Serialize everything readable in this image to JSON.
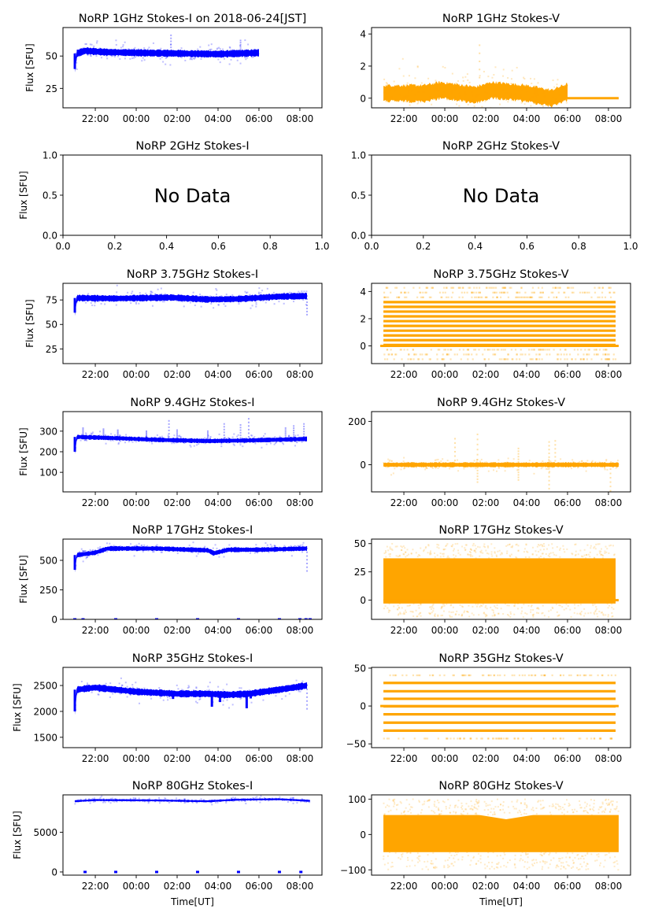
{
  "chart_data": [
    {
      "id": "1ghz-i",
      "type": "scatter",
      "title": "NoRP 1GHz Stokes-I on 2018-06-24[JST]",
      "ylabel": "Flux [SFU]",
      "xlabel": "",
      "color": "#0000ff",
      "xaxis": "time",
      "xlim_hours": [
        20.42,
        33.08
      ],
      "ylim": [
        10,
        72
      ],
      "yticks": [
        25,
        50
      ],
      "xticks": [
        "22:00",
        "00:00",
        "02:00",
        "04:00",
        "06:00",
        "08:00"
      ],
      "series": {
        "start": 21.0,
        "end": 30.0,
        "baseline": [
          [
            21.0,
            40
          ],
          [
            21.1,
            52
          ],
          [
            21.5,
            54
          ],
          [
            22.5,
            53
          ],
          [
            24,
            52.5
          ],
          [
            26,
            52
          ],
          [
            28,
            51.5
          ],
          [
            29,
            52
          ],
          [
            30,
            52.5
          ]
        ],
        "spread": 2.5,
        "spikes": [
          [
            25.7,
            66
          ],
          [
            29.1,
            62
          ]
        ],
        "zero_markers": []
      }
    },
    {
      "id": "1ghz-v",
      "type": "scatter",
      "title": "NoRP 1GHz Stokes-V",
      "ylabel": "",
      "xlabel": "",
      "color": "#ffa500",
      "xaxis": "time",
      "xlim_hours": [
        20.42,
        33.08
      ],
      "ylim": [
        -0.6,
        4.4
      ],
      "yticks": [
        0,
        2,
        4
      ],
      "xticks": [
        "22:00",
        "00:00",
        "02:00",
        "04:00",
        "06:00",
        "08:00"
      ],
      "series": {
        "start": 21.0,
        "end": 30.0,
        "baseline": [
          [
            21,
            0.3
          ],
          [
            23,
            0.3
          ],
          [
            23.8,
            0.5
          ],
          [
            25.5,
            0.2
          ],
          [
            26.3,
            0.5
          ],
          [
            28,
            0.3
          ],
          [
            29.2,
            0.0
          ],
          [
            30,
            0.4
          ]
        ],
        "spread": 0.5,
        "spikes": [
          [
            25.7,
            3.3
          ]
        ],
        "flat_after": [
          30.0,
          32.5,
          0
        ]
      }
    },
    {
      "id": "2ghz-i",
      "type": "empty",
      "title": "NoRP 2GHz Stokes-I",
      "ylabel": "Flux [SFU]",
      "annotation": "No Data",
      "xlim": [
        0,
        1
      ],
      "ylim": [
        0,
        1
      ],
      "xticks": [
        "0.0",
        "0.2",
        "0.4",
        "0.6",
        "0.8",
        "1.0"
      ],
      "yticks": [
        "0.0",
        "0.5",
        "1.0"
      ]
    },
    {
      "id": "2ghz-v",
      "type": "empty",
      "title": "NoRP 2GHz Stokes-V",
      "ylabel": "",
      "annotation": "No Data",
      "xlim": [
        0,
        1
      ],
      "ylim": [
        0,
        1
      ],
      "xticks": [
        "0.0",
        "0.2",
        "0.4",
        "0.6",
        "0.8",
        "1.0"
      ],
      "yticks": [
        "0.0",
        "0.5",
        "1.0"
      ]
    },
    {
      "id": "375ghz-i",
      "type": "scatter",
      "title": "NoRP 3.75GHz Stokes-I",
      "ylabel": "Flux [SFU]",
      "xlabel": "",
      "color": "#0000ff",
      "xaxis": "time",
      "xlim_hours": [
        20.42,
        33.08
      ],
      "ylim": [
        10,
        92
      ],
      "yticks": [
        25,
        50,
        75
      ],
      "xticks": [
        "22:00",
        "00:00",
        "02:00",
        "04:00",
        "06:00",
        "08:00"
      ],
      "series": {
        "start": 21.0,
        "end": 32.35,
        "baseline": [
          [
            21.0,
            62
          ],
          [
            21.1,
            77
          ],
          [
            23,
            76.5
          ],
          [
            25.7,
            77.5
          ],
          [
            27.5,
            75.5
          ],
          [
            29,
            76
          ],
          [
            31,
            78.5
          ],
          [
            32.35,
            79
          ]
        ],
        "spread": 3,
        "spikes": [
          [
            32.35,
            60
          ]
        ]
      }
    },
    {
      "id": "375ghz-v",
      "type": "levels",
      "title": "NoRP 3.75GHz Stokes-V",
      "ylabel": "",
      "xlabel": "",
      "color": "#ffa500",
      "xaxis": "time",
      "xlim_hours": [
        20.42,
        33.08
      ],
      "ylim": [
        -1.3,
        4.6
      ],
      "yticks": [
        0,
        2,
        4
      ],
      "xticks": [
        "22:00",
        "00:00",
        "02:00",
        "04:00",
        "06:00",
        "08:00"
      ],
      "series": {
        "start": 21.0,
        "end": 32.35,
        "flat_end": 32.5,
        "levels_solid": [
          0.07,
          0.42,
          0.77,
          1.12,
          1.47,
          1.82,
          2.17,
          2.52,
          2.87,
          3.22
        ],
        "levels_faint": [
          -0.28,
          -0.63,
          -0.98,
          3.57,
          3.92,
          4.27
        ]
      }
    },
    {
      "id": "94ghz-i",
      "type": "scatter",
      "title": "NoRP 9.4GHz Stokes-I",
      "ylabel": "Flux [SFU]",
      "xlabel": "",
      "color": "#0000ff",
      "xaxis": "time",
      "xlim_hours": [
        20.42,
        33.08
      ],
      "ylim": [
        5,
        395
      ],
      "yticks": [
        100,
        200,
        300
      ],
      "xticks": [
        "22:00",
        "00:00",
        "02:00",
        "04:00",
        "06:00",
        "08:00"
      ],
      "series": {
        "start": 21.0,
        "end": 32.35,
        "baseline": [
          [
            21.0,
            200
          ],
          [
            21.1,
            272
          ],
          [
            23,
            266
          ],
          [
            25,
            258
          ],
          [
            27.5,
            252
          ],
          [
            29.5,
            255
          ],
          [
            32.35,
            262
          ]
        ],
        "spread": 10,
        "spikes": [
          [
            21.4,
            315
          ],
          [
            22.4,
            310
          ],
          [
            23.1,
            305
          ],
          [
            24.5,
            300
          ],
          [
            25.6,
            350
          ],
          [
            26.0,
            305
          ],
          [
            27.5,
            300
          ],
          [
            28.3,
            335
          ],
          [
            29.1,
            330
          ],
          [
            29.5,
            360
          ],
          [
            31.3,
            315
          ],
          [
            31.7,
            325
          ],
          [
            32.2,
            335
          ]
        ]
      }
    },
    {
      "id": "94ghz-v",
      "type": "scatter",
      "title": "NoRP 9.4GHz Stokes-V",
      "ylabel": "",
      "xlabel": "",
      "color": "#ffa500",
      "xaxis": "time",
      "xlim_hours": [
        20.42,
        33.08
      ],
      "ylim": [
        -125,
        245
      ],
      "yticks": [
        0,
        200
      ],
      "xticks": [
        "22:00",
        "00:00",
        "02:00",
        "04:00",
        "06:00",
        "08:00"
      ],
      "series": {
        "start": 21.0,
        "end": 32.5,
        "baseline": [
          [
            21,
            0
          ],
          [
            32.5,
            0
          ]
        ],
        "spread": 10,
        "spikes": [
          [
            24.5,
            120
          ],
          [
            25.6,
            140
          ],
          [
            25.6,
            -80
          ],
          [
            27.6,
            75
          ],
          [
            27.6,
            -70
          ],
          [
            29.1,
            105
          ],
          [
            29.4,
            110
          ],
          [
            29.1,
            -110
          ],
          [
            32.1,
            -120
          ]
        ]
      }
    },
    {
      "id": "17ghz-i",
      "type": "scatter",
      "title": "NoRP 17GHz Stokes-I",
      "ylabel": "Flux [SFU]",
      "xlabel": "",
      "color": "#0000ff",
      "xaxis": "time",
      "xlim_hours": [
        20.42,
        33.08
      ],
      "ylim": [
        0,
        680
      ],
      "yticks": [
        0,
        250,
        500
      ],
      "xticks": [
        "22:00",
        "00:00",
        "02:00",
        "04:00",
        "06:00",
        "08:00"
      ],
      "series": {
        "start": 21.0,
        "end": 32.35,
        "baseline": [
          [
            21.0,
            420
          ],
          [
            21.1,
            545
          ],
          [
            22.0,
            565
          ],
          [
            22.6,
            600
          ],
          [
            25,
            600
          ],
          [
            27.5,
            585
          ],
          [
            27.8,
            560
          ],
          [
            28.5,
            590
          ],
          [
            30,
            590
          ],
          [
            32.35,
            600
          ]
        ],
        "spread": 18,
        "spikes": [
          [
            32.35,
            410
          ]
        ],
        "zero_markers": [
          21.0,
          21.4,
          23.0,
          25.0,
          27.0,
          29.0,
          31.0,
          32.0,
          32.3,
          32.5
        ]
      }
    },
    {
      "id": "17ghz-v",
      "type": "scatter",
      "title": "NoRP 17GHz Stokes-V",
      "ylabel": "",
      "xlabel": "",
      "color": "#ffa500",
      "xaxis": "time",
      "xlim_hours": [
        20.42,
        33.08
      ],
      "ylim": [
        -17,
        54
      ],
      "yticks": [
        0,
        25,
        50
      ],
      "xticks": [
        "22:00",
        "00:00",
        "02:00",
        "04:00",
        "06:00",
        "08:00"
      ],
      "series": {
        "start": 21.0,
        "end": 32.35,
        "band": [
          -3,
          37
        ],
        "flat_end": 32.5,
        "outlier_range": [
          -15,
          50
        ]
      }
    },
    {
      "id": "35ghz-i",
      "type": "scatter",
      "title": "NoRP 35GHz Stokes-I",
      "ylabel": "Flux [SFU]",
      "xlabel": "",
      "color": "#0000ff",
      "xaxis": "time",
      "xlim_hours": [
        20.42,
        33.08
      ],
      "ylim": [
        1300,
        2850
      ],
      "yticks": [
        1500,
        2000,
        2500
      ],
      "xticks": [
        "22:00",
        "00:00",
        "02:00",
        "04:00",
        "06:00",
        "08:00"
      ],
      "series": {
        "start": 21.0,
        "end": 32.35,
        "baseline": [
          [
            21.0,
            2000
          ],
          [
            21.1,
            2420
          ],
          [
            22,
            2460
          ],
          [
            24,
            2380
          ],
          [
            26,
            2340
          ],
          [
            27.5,
            2340
          ],
          [
            28.5,
            2320
          ],
          [
            29.5,
            2340
          ],
          [
            31,
            2420
          ],
          [
            32.35,
            2500
          ]
        ],
        "spread": 60,
        "dips": [
          [
            25.8,
            2240
          ],
          [
            27.7,
            2090
          ],
          [
            28.1,
            2180
          ],
          [
            29.4,
            2060
          ],
          [
            29.6,
            2250
          ]
        ],
        "spikes": [
          [
            32.35,
            2050
          ]
        ]
      }
    },
    {
      "id": "35ghz-v",
      "type": "levels",
      "title": "NoRP 35GHz Stokes-V",
      "ylabel": "",
      "xlabel": "",
      "color": "#ffa500",
      "xaxis": "time",
      "xlim_hours": [
        20.42,
        33.08
      ],
      "ylim": [
        -55,
        51
      ],
      "yticks": [
        -50,
        0,
        50
      ],
      "xticks": [
        "22:00",
        "00:00",
        "02:00",
        "04:00",
        "06:00",
        "08:00"
      ],
      "series": {
        "start": 21.0,
        "end": 32.35,
        "flat_end": 32.5,
        "levels_solid": [
          30.5,
          19.5,
          9.5,
          -0.5,
          -11,
          -22,
          -32.5
        ],
        "levels_faint": [
          40.5,
          -43
        ]
      }
    },
    {
      "id": "80ghz-i",
      "type": "scatter",
      "title": "NoRP 80GHz Stokes-I",
      "ylabel": "Flux [SFU]",
      "xlabel": "Time[UT]",
      "color": "#0000ff",
      "xaxis": "time",
      "xlim_hours": [
        20.42,
        33.08
      ],
      "ylim": [
        -400,
        9700
      ],
      "yticks": [
        0,
        5000
      ],
      "xticks": [
        "22:00",
        "00:00",
        "02:00",
        "04:00",
        "06:00",
        "08:00"
      ],
      "series": {
        "start": 21.0,
        "end": 32.5,
        "baseline": [
          [
            21.0,
            8900
          ],
          [
            22,
            9050
          ],
          [
            25,
            9000
          ],
          [
            27.5,
            8900
          ],
          [
            29,
            9100
          ],
          [
            31,
            9150
          ],
          [
            32.5,
            8950
          ]
        ],
        "spread": 120,
        "zero_markers": [
          21.5,
          23.0,
          25.0,
          27.0,
          29.0,
          31.0,
          32.05
        ]
      }
    },
    {
      "id": "80ghz-v",
      "type": "scatter",
      "title": "NoRP 80GHz Stokes-V",
      "ylabel": "",
      "xlabel": "Time[UT]",
      "color": "#ffa500",
      "xaxis": "time",
      "xlim_hours": [
        20.42,
        33.08
      ],
      "ylim": [
        -115,
        112
      ],
      "yticks": [
        -100,
        0,
        100
      ],
      "xticks": [
        "22:00",
        "00:00",
        "02:00",
        "04:00",
        "06:00",
        "08:00"
      ],
      "series": {
        "start": 21.0,
        "end": 32.5,
        "band": [
          -50,
          55
        ],
        "dip_center": 27.0,
        "outlier_range": [
          -100,
          100
        ]
      }
    }
  ]
}
